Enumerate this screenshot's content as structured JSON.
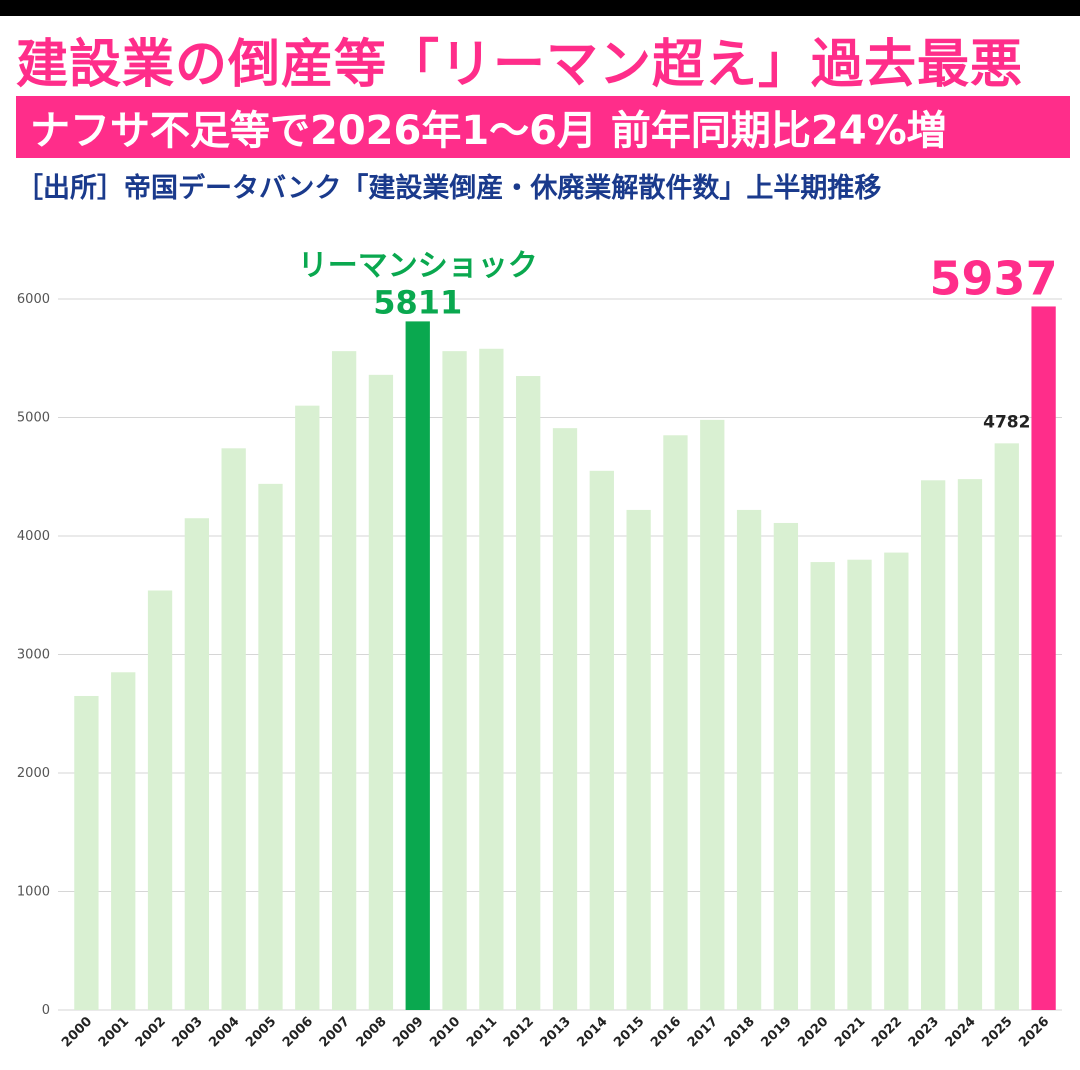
{
  "headline": "建設業の倒産等「リーマン超え」過去最悪",
  "banner": "ナフサ不足等で2026年1～6月 前年同期比24%増",
  "source": "［出所］帝国データバンク「建設業倒産・休廃業解散件数」上半期推移",
  "colors": {
    "accent": "#ff2d8a",
    "green_highlight": "#0aa84f",
    "bar_default": "#d9f0d2",
    "source_text": "#1a3a8c"
  },
  "chart_data": {
    "type": "bar",
    "title": "",
    "xlabel": "",
    "ylabel": "",
    "ylim": [
      0,
      6000
    ],
    "yticks": [
      0,
      1000,
      2000,
      3000,
      4000,
      5000,
      6000
    ],
    "grid": true,
    "categories": [
      "2000",
      "2001",
      "2002",
      "2003",
      "2004",
      "2005",
      "2006",
      "2007",
      "2008",
      "2009",
      "2010",
      "2011",
      "2012",
      "2013",
      "2014",
      "2015",
      "2016",
      "2017",
      "2018",
      "2019",
      "2020",
      "2021",
      "2022",
      "2023",
      "2024",
      "2025",
      "2026"
    ],
    "values": [
      2650,
      2850,
      3540,
      4150,
      4740,
      4440,
      5100,
      5560,
      5360,
      5811,
      5560,
      5580,
      5350,
      4910,
      4550,
      4220,
      4850,
      4980,
      4220,
      4110,
      3780,
      3800,
      3860,
      4470,
      4480,
      4782,
      5937
    ],
    "highlights": [
      {
        "category": "2009",
        "color": "#0aa84f"
      },
      {
        "category": "2026",
        "color": "#ff2d8a"
      }
    ],
    "annotations": [
      {
        "category": "2009",
        "label": "リーマンショック",
        "value_label": "5811",
        "color": "#0aa84f"
      },
      {
        "category": "2026",
        "value_label": "5937",
        "color": "#ff2d8a"
      },
      {
        "category": "2025",
        "value_label": "4782",
        "color": "#222222"
      }
    ]
  }
}
